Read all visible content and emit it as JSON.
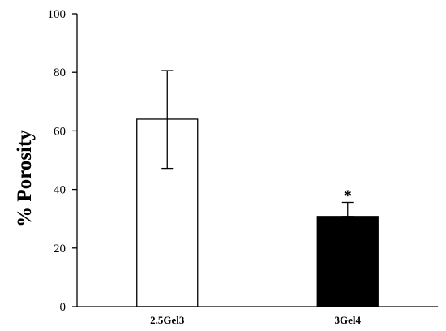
{
  "chart_data": {
    "type": "bar",
    "ylabel": "% Porosity",
    "xlabel": "",
    "ylim": [
      0,
      100
    ],
    "yticks": [
      0,
      20,
      40,
      60,
      80,
      100
    ],
    "categories": [
      "2.5Gel3",
      "3Gel4"
    ],
    "values": [
      64,
      30.8
    ],
    "error_low": [
      47.2,
      30.8
    ],
    "error_high": [
      80.6,
      35.6
    ],
    "bar_colors": [
      "#ffffff",
      "#000000"
    ],
    "bar_edge_color": "#000000",
    "annotations": [
      "",
      "*"
    ],
    "grid": false,
    "legend": "none"
  }
}
